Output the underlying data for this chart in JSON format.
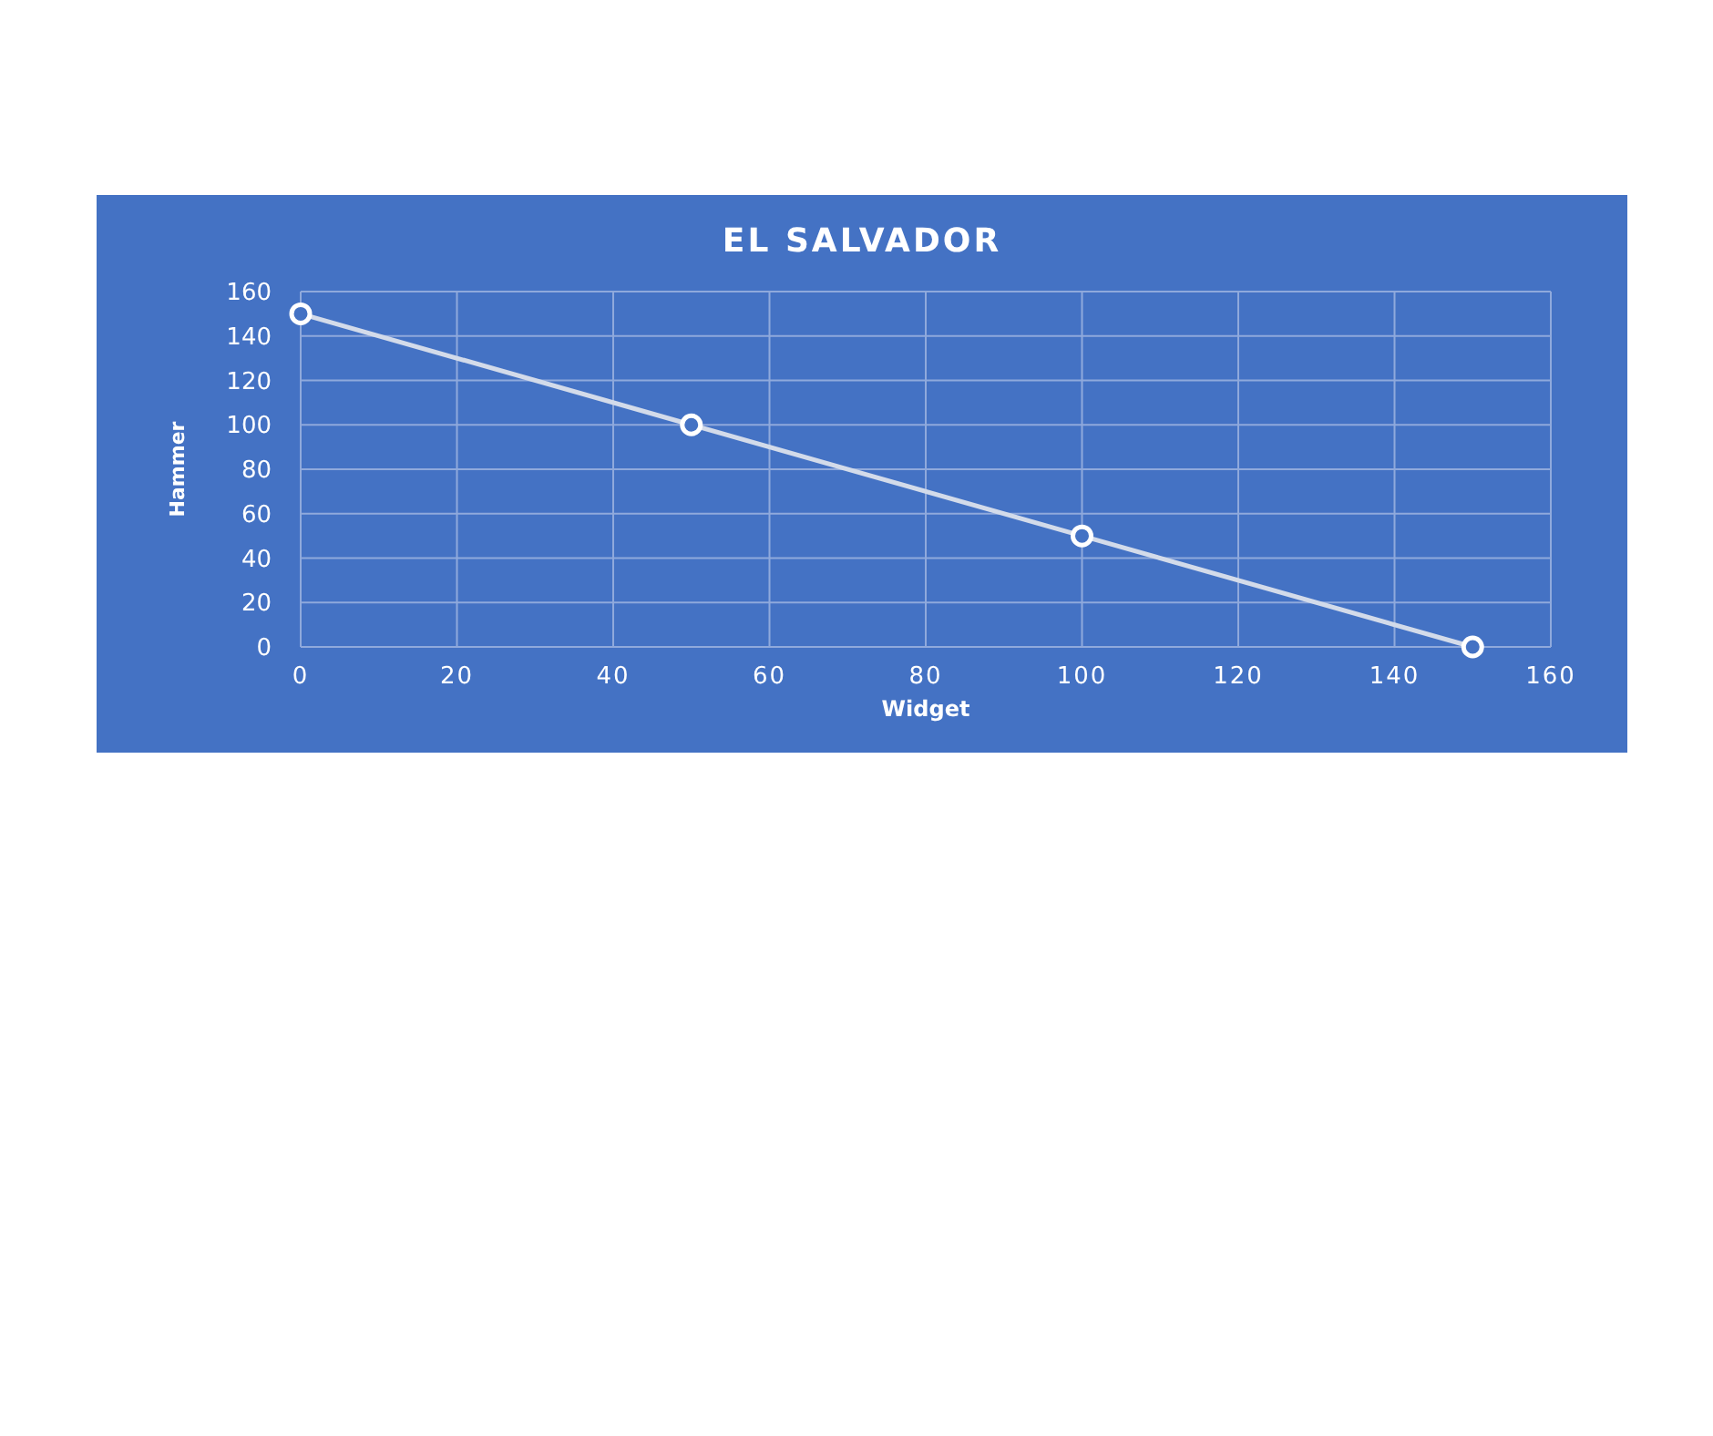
{
  "chart_data": {
    "type": "line",
    "title": "EL SALVADOR",
    "xlabel": "Widget",
    "ylabel": "Hammer",
    "x": [
      0,
      50,
      100,
      150
    ],
    "values": [
      150,
      100,
      50,
      0
    ],
    "color": "#d3dbea",
    "xlim": [
      0,
      160
    ],
    "xticks": [
      0,
      20,
      40,
      60,
      80,
      100,
      120,
      140,
      160
    ],
    "ylim": [
      0,
      160
    ],
    "yticks": [
      0,
      20,
      40,
      60,
      80,
      100,
      120,
      140,
      160
    ],
    "grid": true,
    "marker": "circle",
    "line_style": "solid"
  }
}
